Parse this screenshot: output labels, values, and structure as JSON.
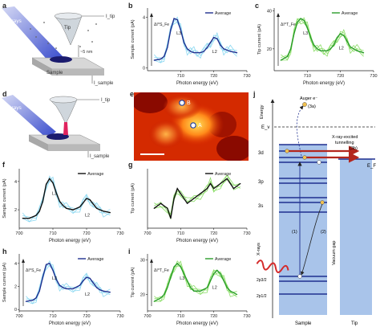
{
  "figure": {
    "panel_letters": [
      "a",
      "b",
      "c",
      "d",
      "e",
      "f",
      "g",
      "h",
      "i",
      "j"
    ],
    "schematic_a": {
      "xrays_label": "X-rays",
      "tip_label": "Tip",
      "itip_label": "I_tip",
      "distance_label": "~5 nm",
      "sample_label": "Sample",
      "isample_label": "I_sample"
    },
    "schematic_d": {
      "xrays_label": "X-rays",
      "itip_label": "I_tip",
      "isample_label": "I_sample"
    },
    "image_e": {
      "marker_a": "A",
      "marker_b": "B"
    },
    "diagram_j": {
      "energy_label": "Energy",
      "ev_label": "E_v",
      "ef_label": "E_F",
      "auger_label": "Auger e⁻",
      "auger_tag": "(3a)",
      "tunneling_label_1": "X-ray-excited",
      "tunneling_label_2": "tunnelling",
      "tunneling_tag": "(3b)",
      "level_3d": "3d",
      "level_3p": "3p",
      "level_3s": "3s",
      "level_2p32": "2p3/2",
      "level_2p12": "2p1/2",
      "step1": "(1)",
      "step2": "(2)",
      "xrays_label": "X-rays",
      "vacuum_gap": "Vacuum gap",
      "sample_label": "Sample",
      "tip_label": "Tip"
    },
    "colors": {
      "sample_blue": "#1f2f8f",
      "sample_light": "#7fd4f0",
      "tip_green": "#2a9d2a",
      "tip_light": "#7ed957",
      "average_black": "#111111",
      "arrow_red": "#b3261e",
      "column_blue": "#a9c4ea"
    }
  },
  "chart_data": [
    {
      "panel": "b",
      "type": "line",
      "xlabel": "Photon energy (eV)",
      "ylabel": "Sample current (pA)",
      "xlim": [
        700,
        730
      ],
      "xticks": [
        "710",
        "720",
        "730"
      ],
      "yticks": [
        "0",
        "4"
      ],
      "legend": "Average",
      "annotation_delta": "ΔI^S_Fe",
      "annotations": [
        "L3",
        "L2"
      ],
      "series": [
        {
          "name": "Average",
          "x": [
            702,
            704,
            705,
            706,
            707,
            708,
            709,
            710,
            711,
            712,
            713,
            714,
            715,
            716,
            717,
            718,
            719,
            720,
            721,
            722,
            723,
            724,
            725,
            727
          ],
          "values": [
            0.6,
            0.7,
            0.9,
            1.6,
            3.0,
            3.9,
            3.8,
            3.0,
            2.0,
            1.5,
            1.3,
            1.2,
            1.2,
            1.2,
            1.3,
            1.6,
            2.0,
            2.4,
            2.3,
            1.8,
            1.5,
            1.4,
            1.3,
            1.2
          ]
        }
      ]
    },
    {
      "panel": "c",
      "type": "line",
      "xlabel": "Photon energy (eV)",
      "ylabel": "Tip current (pA)",
      "xlim": [
        700,
        730
      ],
      "xticks": [
        "710",
        "720",
        "730"
      ],
      "yticks": [
        "0",
        "20",
        "40"
      ],
      "legend": "Average",
      "annotation_delta": "ΔI^T_Fe",
      "annotations": [
        "L3",
        "L2"
      ],
      "series": [
        {
          "name": "Average",
          "x": [
            702,
            704,
            705,
            706,
            707,
            708,
            709,
            710,
            711,
            712,
            713,
            714,
            715,
            716,
            717,
            718,
            719,
            720,
            721,
            722,
            723,
            724,
            725,
            727
          ],
          "values": [
            14,
            16,
            20,
            28,
            34,
            36,
            35,
            31,
            26,
            22,
            20,
            19,
            19,
            19,
            20,
            22,
            26,
            28,
            27,
            24,
            21,
            20,
            19,
            18
          ]
        }
      ]
    },
    {
      "panel": "f",
      "type": "line",
      "xlabel": "Photon energy (eV)",
      "ylabel": "Sample current (pA)",
      "xlim": [
        700,
        730
      ],
      "xticks": [
        "700",
        "710",
        "720",
        "730"
      ],
      "yticks": [
        "2",
        "4"
      ],
      "legend": "Average",
      "annotations": [
        "L3",
        "L2"
      ],
      "series": [
        {
          "name": "Average",
          "x": [
            701,
            703,
            705,
            706,
            707,
            708,
            709,
            710,
            711,
            712,
            713,
            714,
            716,
            718,
            719,
            720,
            721,
            722,
            723,
            724,
            725,
            727
          ],
          "values": [
            1.4,
            1.4,
            1.6,
            1.9,
            2.6,
            3.8,
            4.2,
            3.9,
            3.2,
            2.6,
            2.3,
            2.1,
            2.0,
            2.2,
            2.5,
            2.8,
            2.7,
            2.4,
            2.1,
            2.0,
            1.9,
            1.8
          ]
        }
      ]
    },
    {
      "panel": "g",
      "type": "line",
      "xlabel": "Photon energy (eV)",
      "ylabel": "Tip current (pA)",
      "xlim": [
        700,
        730
      ],
      "xticks": [
        "700",
        "710",
        "720",
        "730"
      ],
      "yticks": [
        "20",
        "40"
      ],
      "legend": "Average",
      "series": [
        {
          "name": "Average",
          "x": [
            702,
            704,
            706,
            707,
            708,
            709,
            710,
            712,
            714,
            716,
            718,
            719,
            720,
            722,
            724,
            726,
            728
          ],
          "values": [
            30,
            31,
            30,
            28,
            32,
            34,
            33,
            31,
            32,
            33,
            34,
            35,
            34,
            35,
            36,
            34,
            35
          ]
        }
      ]
    },
    {
      "panel": "h",
      "type": "line",
      "xlabel": "Photon energy (eV)",
      "ylabel": "Sample current (pA)",
      "xlim": [
        700,
        730
      ],
      "xticks": [
        "700",
        "710",
        "720",
        "730"
      ],
      "yticks": [
        "0",
        "2",
        "4"
      ],
      "legend": "Average",
      "annotation_delta": "ΔI^S_Fe",
      "annotations": [
        "L3",
        "L2"
      ],
      "series": [
        {
          "name": "Average",
          "x": [
            702,
            704,
            705,
            706,
            707,
            708,
            709,
            710,
            711,
            712,
            713,
            714,
            716,
            718,
            719,
            720,
            721,
            722,
            723,
            724,
            725,
            727
          ],
          "values": [
            0.7,
            0.8,
            1.0,
            1.6,
            2.8,
            3.9,
            4.0,
            3.4,
            2.6,
            2.1,
            1.9,
            1.8,
            1.8,
            2.1,
            2.5,
            2.8,
            2.7,
            2.3,
            1.9,
            1.7,
            1.6,
            1.5
          ]
        }
      ]
    },
    {
      "panel": "i",
      "type": "line",
      "xlabel": "Photon energy (eV)",
      "ylabel": "Tip current (pA)",
      "xlim": [
        700,
        730
      ],
      "xticks": [
        "700",
        "710",
        "720",
        "730"
      ],
      "yticks": [
        "20",
        "30"
      ],
      "legend": "Average",
      "annotation_delta": "ΔI^T_Fe",
      "annotations": [
        "L3",
        "L2"
      ],
      "series": [
        {
          "name": "Average",
          "x": [
            702,
            704,
            705,
            706,
            707,
            708,
            709,
            710,
            711,
            712,
            713,
            714,
            716,
            718,
            719,
            720,
            721,
            722,
            723,
            724,
            725,
            727
          ],
          "values": [
            18,
            19,
            20,
            22,
            25,
            28,
            29,
            28,
            26,
            24,
            22,
            21,
            21,
            22,
            24,
            26,
            27,
            26,
            24,
            22,
            21,
            20
          ]
        }
      ]
    }
  ]
}
